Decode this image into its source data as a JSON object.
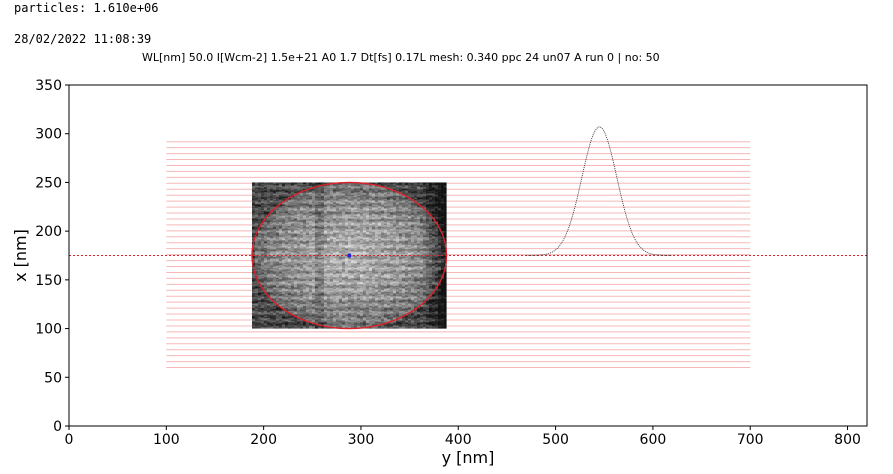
{
  "header": {
    "particles": "particles: 1.610e+06",
    "timestamp": "28/02/2022 11:08:39",
    "params": "WL[nm] 50.0 I[Wcm-2] 1.5e+21 A0 1.7 Dt[fs] 0.17L mesh: 0.340 ppc 24 un07 A run 0 | no: 50"
  },
  "colors": {
    "axis": "#000000",
    "ellipse": "#e0202a",
    "hline": "#e0202a",
    "gridlines": "#f6b8b8",
    "centroid": "#2222dd",
    "profile": "#333333",
    "particle_light": "#d8d8d8",
    "particle_dark": "#1a1a1a"
  },
  "chart_data": {
    "type": "scatter",
    "xlabel": "y [nm]",
    "ylabel": "x [nm]",
    "xlim": [
      0,
      820
    ],
    "ylim": [
      0,
      350
    ],
    "xticks": [
      "0",
      "100",
      "200",
      "300",
      "400",
      "500",
      "600",
      "700",
      "800"
    ],
    "yticks": [
      "0",
      "50",
      "100",
      "150",
      "200",
      "250",
      "300",
      "350"
    ],
    "particle_region": {
      "y_range": [
        188,
        388
      ],
      "x_range": [
        100,
        250
      ]
    },
    "ellipse": {
      "center_y": 288,
      "center_x": 175,
      "radius_y": 100,
      "radius_x": 75
    },
    "centroid": {
      "y": 288,
      "x": 175
    },
    "reference_line_x": 175,
    "background_lines": {
      "y_range": [
        100,
        700
      ],
      "x_start": 60,
      "x_end": 292,
      "step": 6.1
    },
    "profile": {
      "y_center": 545,
      "y_range": [
        470,
        620
      ],
      "baseline_x": 175,
      "peak_x": 307,
      "sigma": 18
    }
  }
}
